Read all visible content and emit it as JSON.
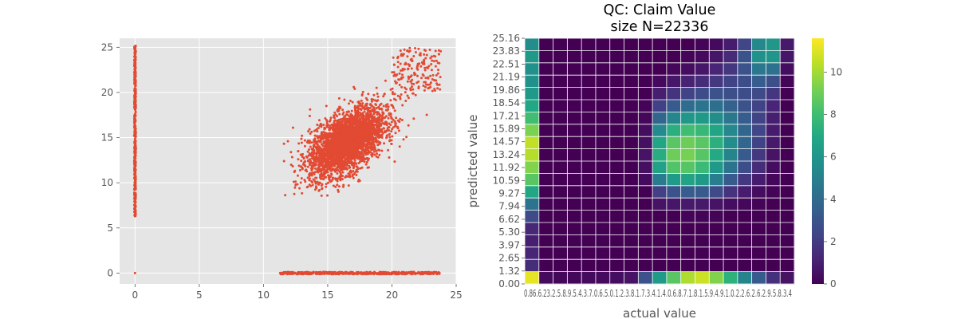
{
  "chart_data": [
    {
      "type": "scatter",
      "title": "",
      "xlabel": "",
      "ylabel": "",
      "xlim": [
        -1.2,
        25
      ],
      "ylim": [
        -1.2,
        26
      ],
      "xticks": [
        0,
        5,
        10,
        15,
        20,
        25
      ],
      "yticks": [
        0,
        5,
        10,
        15,
        20,
        25
      ],
      "grid": true,
      "point_color": "#E24A33",
      "background": "#E5E5E5",
      "clusters": [
        {
          "region": "vertical band at actual=0",
          "x": 0,
          "y_range": [
            6.3,
            25.2
          ]
        },
        {
          "region": "horizontal band at predicted=0",
          "y": 0,
          "x_range": [
            11.3,
            23.7
          ]
        },
        {
          "region": "main cloud",
          "x_center": 16.5,
          "y_center": 14.5,
          "x_range": [
            11.5,
            24.0
          ],
          "y_range": [
            8.5,
            25.0
          ]
        },
        {
          "region": "origin",
          "x": 0,
          "y": 0
        }
      ],
      "points": [
        [
          0,
          0
        ],
        [
          0,
          6.3
        ],
        [
          0,
          8.1
        ],
        [
          0,
          9.6
        ],
        [
          0,
          10.5
        ],
        [
          0,
          11.8
        ],
        [
          0,
          12.9
        ],
        [
          0,
          13.7
        ],
        [
          0,
          14.6
        ],
        [
          0,
          15.5
        ],
        [
          0,
          16.4
        ],
        [
          0,
          17.6
        ],
        [
          0,
          18.8
        ],
        [
          0,
          19.9
        ],
        [
          0,
          21.2
        ],
        [
          0,
          22.4
        ],
        [
          0,
          23.6
        ],
        [
          0,
          24.5
        ],
        [
          0,
          25.1
        ],
        [
          11.3,
          0
        ],
        [
          12.1,
          0
        ],
        [
          12.8,
          0
        ],
        [
          13.5,
          0
        ],
        [
          14.2,
          0
        ],
        [
          15.0,
          0
        ],
        [
          15.9,
          0
        ],
        [
          16.7,
          0
        ],
        [
          17.5,
          0
        ],
        [
          18.4,
          0
        ],
        [
          19.2,
          0
        ],
        [
          20.1,
          0
        ],
        [
          20.9,
          0
        ],
        [
          21.8,
          0
        ],
        [
          22.6,
          0
        ],
        [
          23.3,
          0
        ],
        [
          23.7,
          0
        ],
        [
          11.6,
          12.4
        ],
        [
          11.9,
          14.6
        ],
        [
          12.3,
          16.1
        ],
        [
          12.4,
          11.2
        ],
        [
          12.7,
          13.5
        ],
        [
          13.0,
          15.2
        ],
        [
          13.2,
          10.3
        ],
        [
          13.4,
          12.8
        ],
        [
          13.6,
          17.4
        ],
        [
          13.9,
          14.1
        ],
        [
          14.1,
          9.6
        ],
        [
          14.3,
          11.9
        ],
        [
          14.5,
          16.2
        ],
        [
          14.7,
          13.3
        ],
        [
          14.9,
          18.5
        ],
        [
          15.1,
          10.8
        ],
        [
          15.3,
          14.7
        ],
        [
          15.5,
          12.4
        ],
        [
          15.6,
          16.9
        ],
        [
          15.8,
          9.2
        ],
        [
          16.0,
          15.4
        ],
        [
          16.1,
          13.1
        ],
        [
          16.3,
          19.2
        ],
        [
          16.5,
          11.5
        ],
        [
          16.6,
          14.9
        ],
        [
          16.8,
          17.6
        ],
        [
          17.0,
          12.7
        ],
        [
          17.1,
          20.4
        ],
        [
          17.3,
          15.8
        ],
        [
          17.5,
          10.2
        ],
        [
          17.6,
          13.9
        ],
        [
          17.8,
          18.3
        ],
        [
          18.0,
          16.6
        ],
        [
          18.2,
          11.7
        ],
        [
          18.4,
          14.4
        ],
        [
          18.6,
          19.7
        ],
        [
          18.8,
          12.9
        ],
        [
          19.0,
          17.2
        ],
        [
          19.2,
          15.1
        ],
        [
          19.5,
          21.3
        ],
        [
          19.7,
          13.6
        ],
        [
          20.0,
          18.6
        ],
        [
          20.3,
          16.3
        ],
        [
          20.6,
          22.1
        ],
        [
          20.9,
          14.8
        ],
        [
          21.3,
          19.4
        ],
        [
          21.7,
          17.1
        ],
        [
          22.0,
          23.0
        ],
        [
          22.3,
          21.6
        ],
        [
          22.5,
          24.2
        ],
        [
          22.8,
          22.7
        ],
        [
          23.0,
          23.8
        ],
        [
          23.2,
          21.9
        ],
        [
          23.4,
          24.6
        ],
        [
          23.6,
          22.5
        ]
      ]
    },
    {
      "type": "heatmap",
      "title": "QC: Claim Value\nsize N=22336",
      "title_lines": [
        "QC: Claim Value",
        "size N=22336"
      ],
      "xlabel": "actual value",
      "ylabel": "predicted value",
      "ylim": [
        0,
        25.16
      ],
      "y_tick_labels": [
        "0.00",
        "1.32",
        "2.65",
        "3.97",
        "5.30",
        "6.62",
        "7.94",
        "9.27",
        "10.59",
        "11.92",
        "13.24",
        "14.57",
        "15.89",
        "17.21",
        "18.54",
        "19.86",
        "21.19",
        "22.51",
        "23.83",
        "25.16"
      ],
      "x_tick_labels_text": "0.86.6.23.2.5.8.9.5.4.3.7.0.6.5.0.1.2.3.8.1.7.3.4.1.4.0.6.8.7.1.8.1.5.9.4.9.1.0.2.2.6.2.6.2.9.5.8.3.4",
      "x_tick_labels": [
        "0.86",
        "6.23",
        "2.58",
        "9.54",
        "3.70",
        "6.50",
        "12.38",
        "17.34",
        "14.06",
        "18.77",
        "18.59",
        "19.40",
        "22.62",
        "26.29",
        "26.34"
      ],
      "colormap": "viridis",
      "colorbar": {
        "min": 0,
        "max": 11.6,
        "ticks": [
          0,
          2,
          4,
          6,
          8,
          10
        ]
      },
      "grid": true,
      "n_rows": 20,
      "n_cols": 19,
      "values_rows_bottom_to_top": [
        [
          11.2,
          0.3,
          0.2,
          0.2,
          0.3,
          0.3,
          0.4,
          0.6,
          2.9,
          6.3,
          8.6,
          10.2,
          10.7,
          9.4,
          7.4,
          5.2,
          3.3,
          1.6,
          0.6
        ],
        [
          1.5,
          0,
          0,
          0,
          0,
          0,
          0,
          0,
          0,
          0,
          0,
          0,
          0,
          0,
          0,
          0,
          0,
          0,
          0
        ],
        [
          1.2,
          0,
          0,
          0,
          0,
          0,
          0,
          0,
          0,
          0,
          0,
          0,
          0,
          0,
          0,
          0,
          0,
          0,
          0
        ],
        [
          1.0,
          0,
          0,
          0,
          0,
          0,
          0,
          0,
          0,
          0,
          0,
          0,
          0,
          0,
          0,
          0,
          0,
          0,
          0
        ],
        [
          1.3,
          0,
          0,
          0,
          0,
          0,
          0,
          0,
          0,
          0,
          0,
          0,
          0,
          0,
          0,
          0,
          0,
          0,
          0
        ],
        [
          2.6,
          0,
          0,
          0,
          0,
          0,
          0,
          0,
          0,
          0,
          0,
          0.1,
          0.1,
          0.1,
          0,
          0,
          0,
          0,
          0
        ],
        [
          4.4,
          0,
          0,
          0,
          0,
          0,
          0,
          0,
          0,
          0.6,
          0.7,
          0.8,
          0.8,
          0.6,
          0.4,
          0.2,
          0.1,
          0,
          0
        ],
        [
          6.9,
          0,
          0,
          0,
          0,
          0,
          0,
          0,
          0,
          2.2,
          3.0,
          3.4,
          3.3,
          2.6,
          1.7,
          0.9,
          0.4,
          0.1,
          0
        ],
        [
          8.6,
          0,
          0,
          0,
          0,
          0,
          0,
          0,
          0.3,
          4.8,
          6.3,
          6.7,
          6.2,
          4.9,
          3.3,
          1.9,
          0.9,
          0.2,
          0
        ],
        [
          9.4,
          0,
          0,
          0,
          0,
          0,
          0,
          0,
          0.5,
          6.6,
          8.4,
          8.5,
          7.8,
          6.2,
          4.4,
          2.7,
          1.5,
          0.4,
          0
        ],
        [
          10.3,
          0,
          0,
          0,
          0,
          0,
          0,
          0,
          0.6,
          7.2,
          9.0,
          9.2,
          8.5,
          7.0,
          5.2,
          3.3,
          1.9,
          0.6,
          0
        ],
        [
          10.5,
          0,
          0,
          0,
          0,
          0,
          0,
          0,
          0.5,
          6.8,
          8.6,
          9.0,
          8.6,
          7.3,
          5.6,
          3.8,
          2.3,
          0.8,
          0
        ],
        [
          9.3,
          0,
          0,
          0,
          0,
          0,
          0,
          0,
          0.4,
          5.5,
          7.3,
          8.0,
          7.7,
          6.8,
          5.4,
          3.8,
          2.4,
          0.9,
          0
        ],
        [
          8.0,
          0,
          0,
          0,
          0,
          0,
          0,
          0,
          0.2,
          3.8,
          5.3,
          6.1,
          6.2,
          5.6,
          4.6,
          3.4,
          2.3,
          1.0,
          0
        ],
        [
          6.9,
          0,
          0,
          0,
          0,
          0,
          0,
          0,
          0.1,
          2.2,
          3.3,
          4.1,
          4.4,
          4.2,
          3.6,
          2.9,
          2.3,
          1.2,
          0
        ],
        [
          6.2,
          0,
          0,
          0,
          0,
          0,
          0,
          0,
          0,
          1.0,
          1.7,
          2.3,
          2.7,
          2.9,
          2.8,
          2.7,
          2.6,
          1.8,
          0
        ],
        [
          5.8,
          0,
          0,
          0,
          0,
          0,
          0,
          0,
          0,
          0.3,
          0.7,
          1.1,
          1.5,
          1.9,
          2.3,
          2.7,
          3.4,
          2.8,
          0.1
        ],
        [
          5.8,
          0,
          0,
          0,
          0,
          0,
          0,
          0,
          0,
          0,
          0.2,
          0.4,
          0.7,
          1.2,
          1.8,
          2.9,
          4.6,
          4.3,
          0.4
        ],
        [
          6.2,
          0,
          0,
          0,
          0,
          0,
          0,
          0,
          0,
          0,
          0,
          0.1,
          0.3,
          0.7,
          1.4,
          3.0,
          5.8,
          6.0,
          0.7
        ],
        [
          5.6,
          0,
          0,
          0,
          0,
          0,
          0,
          0,
          0,
          0,
          0,
          0,
          0.1,
          0.3,
          0.9,
          2.4,
          5.4,
          6.1,
          0.8
        ]
      ]
    }
  ]
}
